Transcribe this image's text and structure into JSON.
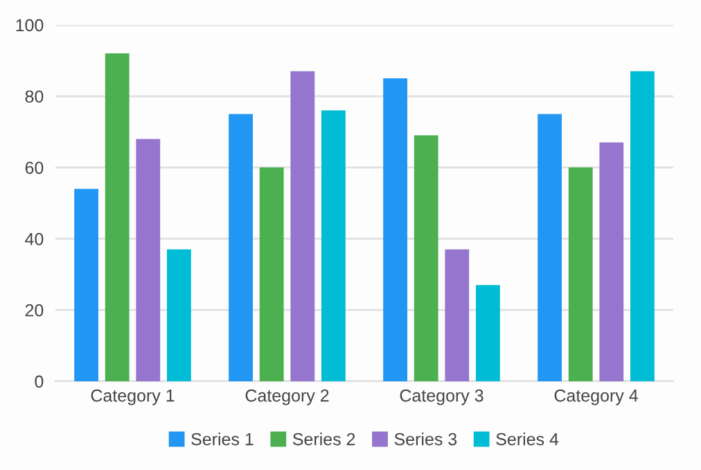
{
  "chart_data": {
    "type": "bar",
    "categories": [
      "Category 1",
      "Category 2",
      "Category 3",
      "Category 4"
    ],
    "series": [
      {
        "name": "Series 1",
        "color": "#2196f3",
        "values": [
          54,
          75,
          85,
          75
        ]
      },
      {
        "name": "Series 2",
        "color": "#4caf50",
        "values": [
          92,
          60,
          69,
          60
        ]
      },
      {
        "name": "Series 3",
        "color": "#9575cd",
        "values": [
          68,
          87,
          37,
          67
        ]
      },
      {
        "name": "Series 4",
        "color": "#00bcd4",
        "values": [
          37,
          76,
          27,
          87
        ]
      }
    ],
    "ylim": [
      0,
      100
    ],
    "yticks": [
      0,
      20,
      40,
      60,
      80,
      100
    ],
    "grid": "y",
    "legend": "bottom"
  }
}
